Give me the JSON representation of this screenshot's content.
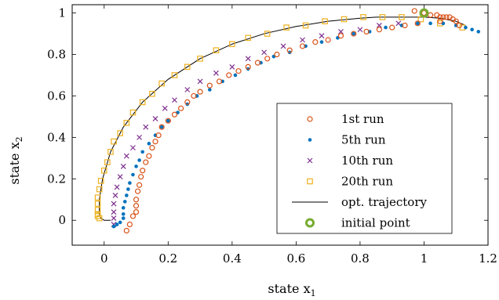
{
  "chart_data": {
    "type": "scatter",
    "xlabel": "state x",
    "xlabel_sub": "1",
    "ylabel": "state x",
    "ylabel_sub": "2",
    "xlim": [
      -0.1,
      1.2
    ],
    "ylim": [
      -0.12,
      1.04
    ],
    "xticks": [
      0,
      0.2,
      0.4,
      0.6,
      0.8,
      1,
      1.2
    ],
    "xtick_labels": [
      "0",
      "0.2",
      "0.4",
      "0.6",
      "0.8",
      "1",
      "1.2"
    ],
    "yticks": [
      0,
      0.2,
      0.4,
      0.6,
      0.8,
      1
    ],
    "ytick_labels": [
      "0",
      "0.2",
      "0.4",
      "0.6",
      "0.8",
      "1"
    ],
    "grid": false,
    "legend_position": "bottom-right",
    "colors": {
      "run1": "#D95319",
      "run5": "#0072BD",
      "run10": "#7E2F8E",
      "run20": "#EDB120",
      "opt": "#000000",
      "initial": "#77AC30"
    },
    "series": [
      {
        "name": "1st run",
        "marker": "circle-open",
        "color": "#D95319",
        "x": [
          0.97,
          1.0,
          1.02,
          1.04,
          1.05,
          1.06,
          1.07,
          1.08,
          1.09,
          1.1,
          1.11,
          1.05,
          0.98,
          0.94,
          0.9,
          0.86,
          0.82,
          0.78,
          0.74,
          0.7,
          0.66,
          0.62,
          0.58,
          0.54,
          0.51,
          0.48,
          0.45,
          0.42,
          0.39,
          0.36,
          0.33,
          0.3,
          0.28,
          0.26,
          0.24,
          0.22,
          0.2,
          0.18,
          0.17,
          0.16,
          0.15,
          0.14,
          0.13,
          0.12,
          0.115,
          0.11,
          0.105,
          0.1,
          0.1,
          0.1,
          0.09,
          0.08,
          0.07
        ],
        "y": [
          1.01,
          1.0,
          0.99,
          0.99,
          0.98,
          0.98,
          0.98,
          0.98,
          0.97,
          0.96,
          0.94,
          0.96,
          0.95,
          0.94,
          0.93,
          0.92,
          0.91,
          0.9,
          0.89,
          0.87,
          0.86,
          0.84,
          0.82,
          0.8,
          0.78,
          0.76,
          0.74,
          0.72,
          0.7,
          0.67,
          0.65,
          0.62,
          0.6,
          0.57,
          0.54,
          0.51,
          0.48,
          0.45,
          0.41,
          0.38,
          0.35,
          0.31,
          0.28,
          0.24,
          0.21,
          0.17,
          0.14,
          0.1,
          0.07,
          0.04,
          0.02,
          -0.02,
          -0.05
        ]
      },
      {
        "name": "5th run",
        "marker": "dot",
        "color": "#0072BD",
        "x": [
          1.17,
          1.15,
          1.13,
          1.1,
          1.06,
          1.02,
          0.98,
          0.93,
          0.88,
          0.83,
          0.78,
          0.73,
          0.68,
          0.63,
          0.58,
          0.53,
          0.49,
          0.45,
          0.41,
          0.37,
          0.33,
          0.29,
          0.26,
          0.23,
          0.2,
          0.18,
          0.16,
          0.14,
          0.12,
          0.11,
          0.1,
          0.09,
          0.08,
          0.075,
          0.07,
          0.065,
          0.06,
          0.06,
          0.06,
          0.05,
          0.04,
          0.03
        ],
        "y": [
          0.91,
          0.92,
          0.93,
          0.94,
          0.95,
          0.95,
          0.95,
          0.94,
          0.93,
          0.91,
          0.9,
          0.88,
          0.86,
          0.84,
          0.81,
          0.79,
          0.76,
          0.73,
          0.7,
          0.67,
          0.63,
          0.6,
          0.56,
          0.52,
          0.48,
          0.45,
          0.41,
          0.37,
          0.33,
          0.29,
          0.26,
          0.22,
          0.18,
          0.15,
          0.12,
          0.09,
          0.06,
          0.03,
          0.01,
          -0.01,
          -0.02,
          -0.03
        ]
      },
      {
        "name": "10th run",
        "marker": "x",
        "color": "#7E2F8E",
        "x": [
          0.92,
          0.86,
          0.8,
          0.74,
          0.68,
          0.62,
          0.56,
          0.5,
          0.45,
          0.4,
          0.35,
          0.3,
          0.26,
          0.22,
          0.19,
          0.16,
          0.13,
          0.11,
          0.09,
          0.07,
          0.06,
          0.05,
          0.04,
          0.035,
          0.03,
          0.03,
          0.03,
          0.03
        ],
        "y": [
          0.95,
          0.94,
          0.92,
          0.91,
          0.89,
          0.87,
          0.84,
          0.81,
          0.78,
          0.74,
          0.71,
          0.67,
          0.63,
          0.58,
          0.54,
          0.49,
          0.45,
          0.4,
          0.35,
          0.31,
          0.26,
          0.21,
          0.16,
          0.12,
          0.08,
          0.04,
          0.01,
          -0.02
        ]
      },
      {
        "name": "20th run",
        "marker": "square-open",
        "color": "#EDB120",
        "x": [
          1.12,
          1.05,
          0.99,
          0.93,
          0.87,
          0.81,
          0.75,
          0.69,
          0.63,
          0.57,
          0.51,
          0.45,
          0.4,
          0.35,
          0.3,
          0.26,
          0.22,
          0.18,
          0.15,
          0.12,
          0.09,
          0.07,
          0.05,
          0.03,
          0.02,
          0.01,
          0.0,
          -0.01,
          -0.015,
          -0.02,
          -0.02,
          -0.02,
          -0.02,
          -0.02,
          -0.015
        ],
        "y": [
          0.93,
          0.95,
          0.97,
          0.98,
          0.98,
          0.98,
          0.97,
          0.96,
          0.94,
          0.93,
          0.9,
          0.88,
          0.85,
          0.82,
          0.78,
          0.74,
          0.7,
          0.66,
          0.61,
          0.57,
          0.52,
          0.47,
          0.42,
          0.38,
          0.33,
          0.28,
          0.24,
          0.19,
          0.15,
          0.11,
          0.08,
          0.05,
          0.03,
          0.02,
          0.01
        ]
      },
      {
        "name": "opt. trajectory",
        "marker": "line",
        "color": "#000000",
        "x": [
          1.13,
          1.1,
          1.05,
          1.0,
          0.95,
          0.9,
          0.85,
          0.8,
          0.7,
          0.6,
          0.5,
          0.4,
          0.3,
          0.2,
          0.12,
          0.06,
          0.02,
          -0.005,
          -0.015,
          -0.015,
          -0.01,
          0.0,
          0.01,
          0.02
        ],
        "y": [
          0.94,
          0.96,
          0.975,
          0.98,
          0.98,
          0.98,
          0.98,
          0.975,
          0.96,
          0.935,
          0.9,
          0.85,
          0.78,
          0.68,
          0.57,
          0.45,
          0.33,
          0.2,
          0.1,
          0.03,
          0.01,
          0.0,
          0.0,
          0.0
        ]
      },
      {
        "name": "initial point",
        "marker": "circle-thick",
        "color": "#77AC30",
        "x": [
          1.0
        ],
        "y": [
          1.0
        ]
      }
    ]
  }
}
